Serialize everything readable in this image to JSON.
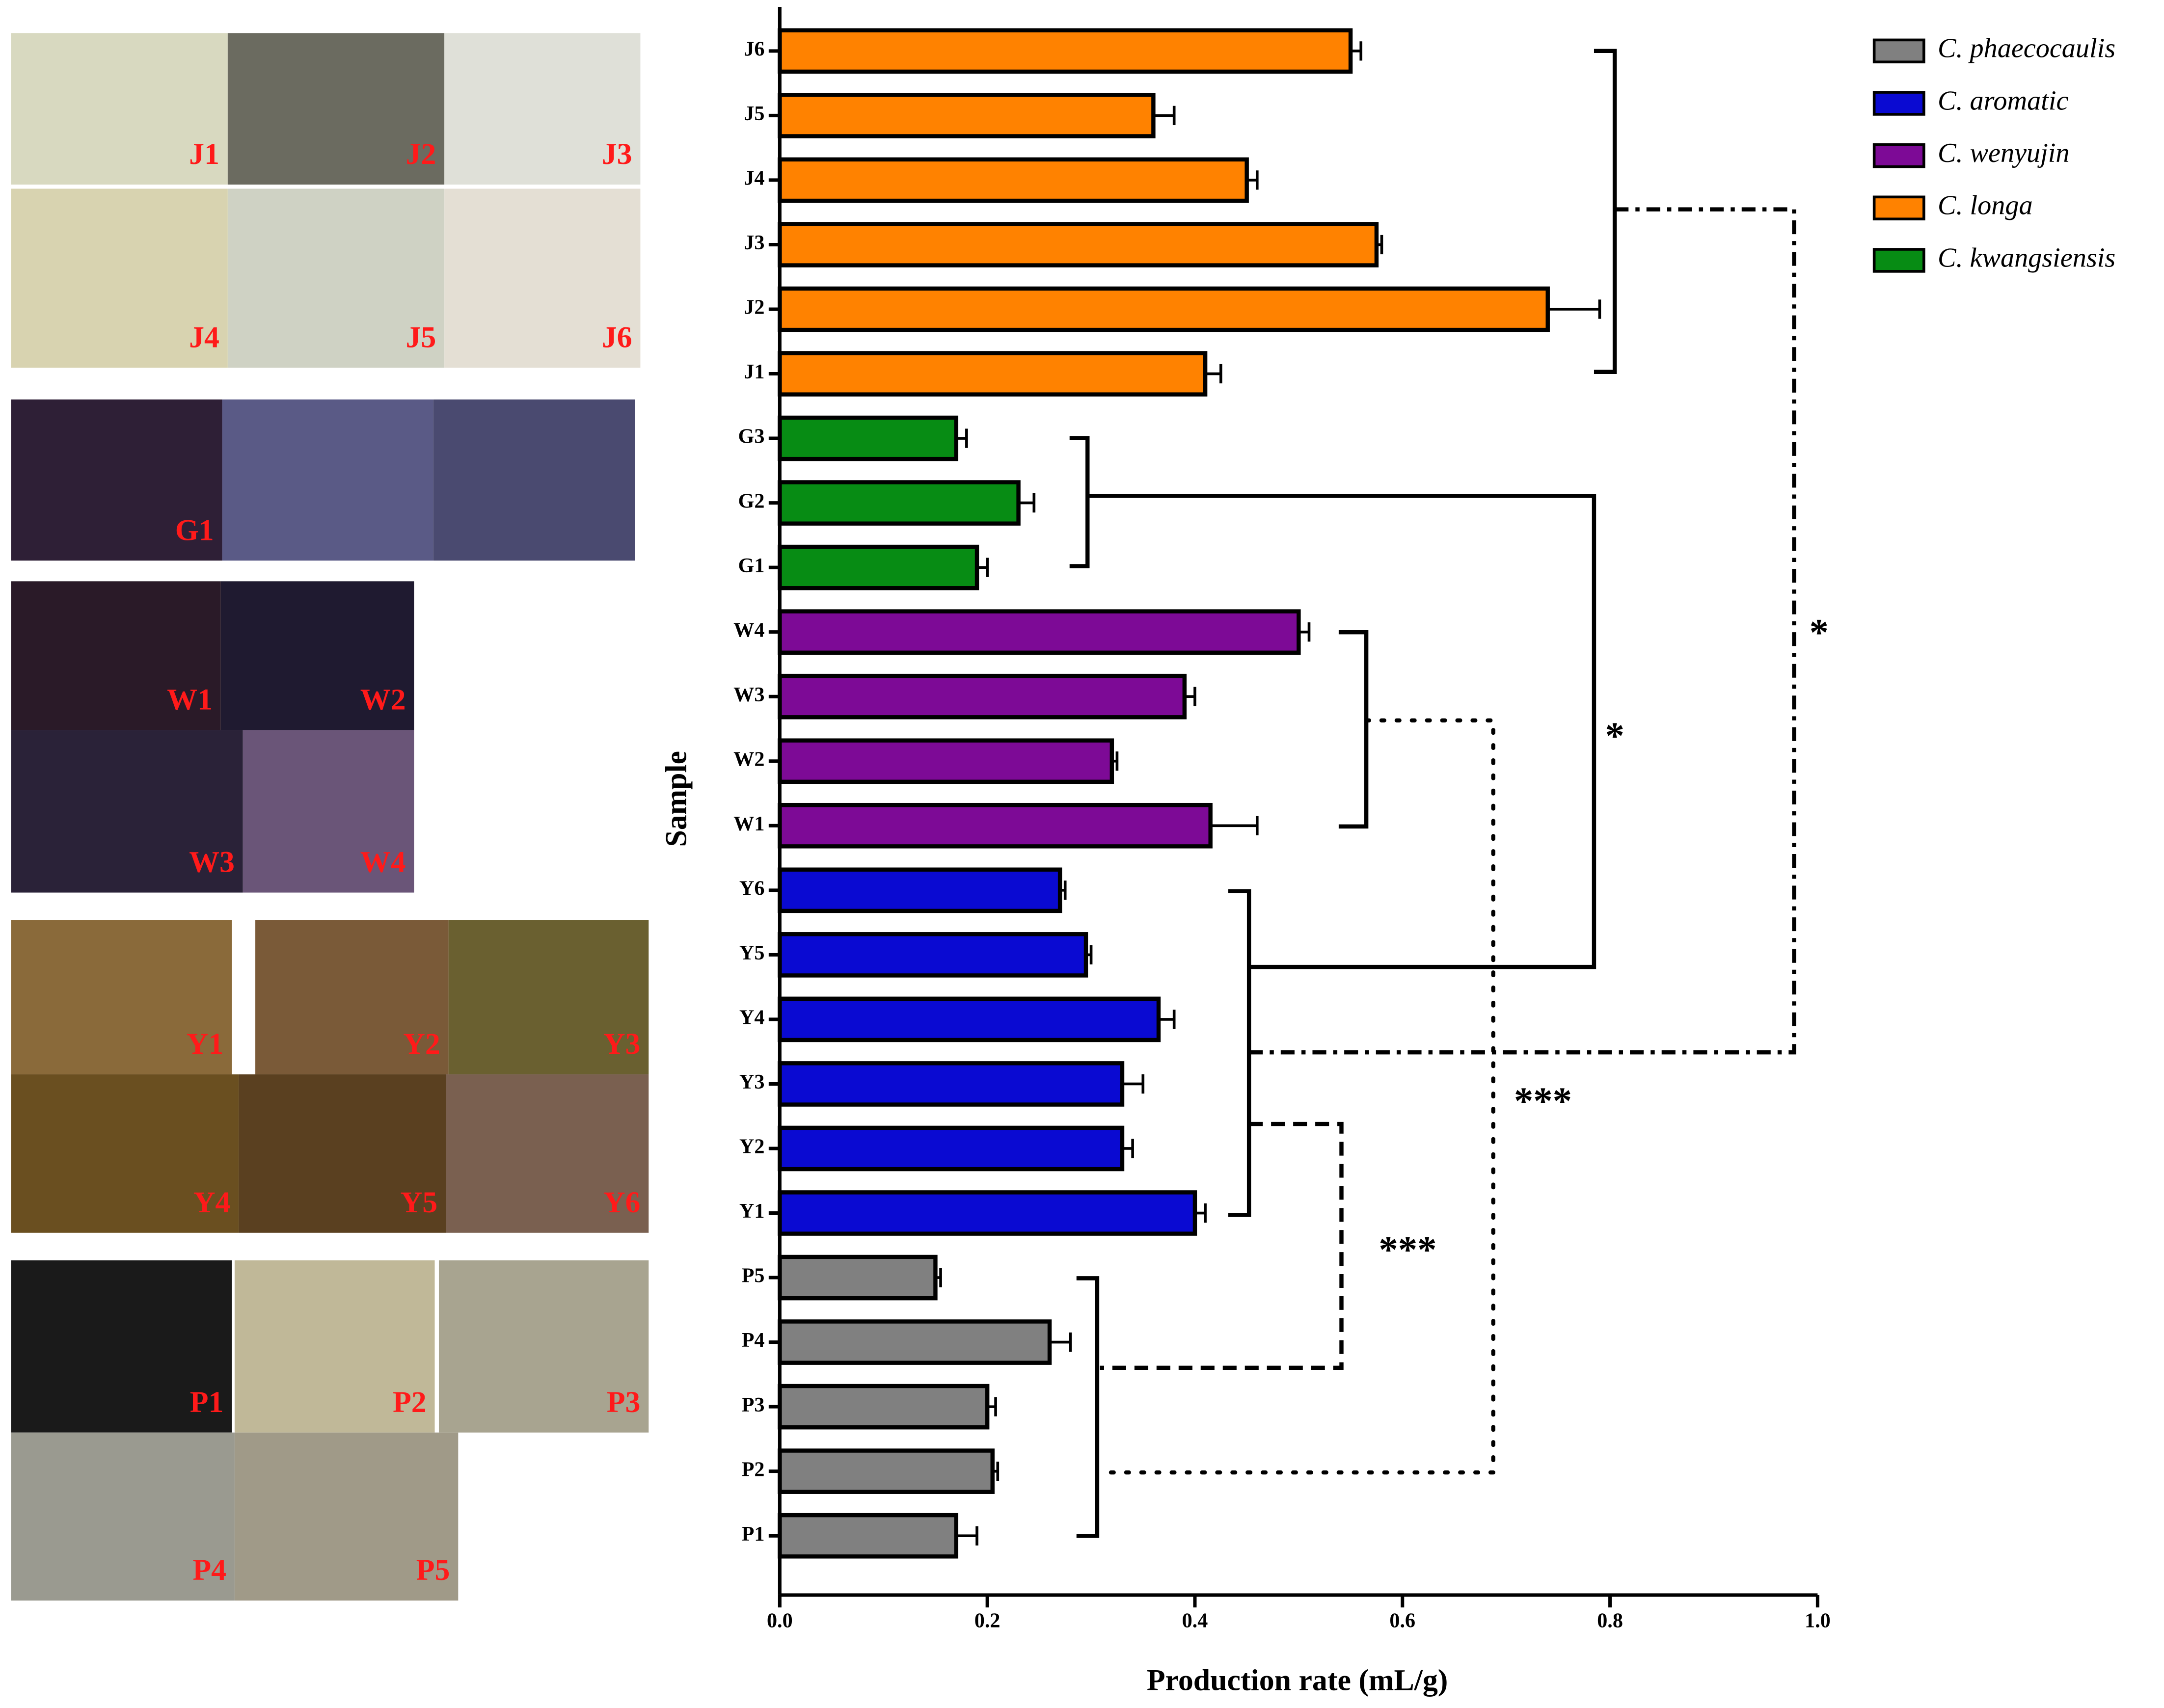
{
  "photo_labels": [
    "J1",
    "J2",
    "J3",
    "J4",
    "J5",
    "J6",
    "G1",
    "W1",
    "W2",
    "W3",
    "W4",
    "Y1",
    "Y2",
    "Y3",
    "Y4",
    "Y5",
    "Y6",
    "P1",
    "P2",
    "P3",
    "P4",
    "P5"
  ],
  "chart_data": {
    "type": "bar",
    "orientation": "horizontal",
    "xlabel": "Production rate (mL/g)",
    "ylabel": "Sample",
    "categories": [
      "P1",
      "P2",
      "P3",
      "P4",
      "P5",
      "Y1",
      "Y2",
      "Y3",
      "Y4",
      "Y5",
      "Y6",
      "W1",
      "W2",
      "W3",
      "W4",
      "G1",
      "G2",
      "G3",
      "J1",
      "J2",
      "J3",
      "J4",
      "J5",
      "J6"
    ],
    "series": [
      {
        "name": "C. phaecocaulis",
        "color": "#808080",
        "values": [
          0.17,
          0.205,
          0.2,
          0.26,
          0.15,
          null,
          null,
          null,
          null,
          null,
          null,
          null,
          null,
          null,
          null,
          null,
          null,
          null,
          null,
          null,
          null,
          null,
          null,
          null
        ],
        "errors": [
          0.02,
          0.005,
          0.008,
          0.02,
          0.005,
          null,
          null,
          null,
          null,
          null,
          null,
          null,
          null,
          null,
          null,
          null,
          null,
          null,
          null,
          null,
          null,
          null,
          null,
          null
        ]
      },
      {
        "name": "C. aromatic",
        "color": "#0a0ad2",
        "values": [
          null,
          null,
          null,
          null,
          null,
          0.4,
          0.33,
          0.33,
          0.365,
          0.295,
          0.27,
          null,
          null,
          null,
          null,
          null,
          null,
          null,
          null,
          null,
          null,
          null,
          null,
          null
        ],
        "errors": [
          null,
          null,
          null,
          null,
          null,
          0.01,
          0.01,
          0.02,
          0.015,
          0.005,
          0.005,
          null,
          null,
          null,
          null,
          null,
          null,
          null,
          null,
          null,
          null,
          null,
          null,
          null
        ]
      },
      {
        "name": "C. wenyujin",
        "color": "#7d0a96",
        "values": [
          null,
          null,
          null,
          null,
          null,
          null,
          null,
          null,
          null,
          null,
          null,
          0.415,
          0.32,
          0.39,
          0.5,
          null,
          null,
          null,
          null,
          null,
          null,
          null,
          null,
          null
        ],
        "errors": [
          null,
          null,
          null,
          null,
          null,
          null,
          null,
          null,
          null,
          null,
          null,
          0.045,
          0.005,
          0.01,
          0.01,
          null,
          null,
          null,
          null,
          null,
          null,
          null,
          null,
          null
        ]
      },
      {
        "name": "C. longa",
        "color": "#ff8200",
        "values": [
          null,
          null,
          null,
          null,
          null,
          null,
          null,
          null,
          null,
          null,
          null,
          null,
          null,
          null,
          null,
          null,
          null,
          null,
          0.41,
          0.74,
          0.575,
          0.45,
          0.36,
          0.55
        ],
        "errors": [
          null,
          null,
          null,
          null,
          null,
          null,
          null,
          null,
          null,
          null,
          null,
          null,
          null,
          null,
          null,
          null,
          null,
          null,
          0.015,
          0.05,
          0.005,
          0.01,
          0.02,
          0.01
        ]
      },
      {
        "name": "C. kwangsiensis",
        "color": "#078c14",
        "values": [
          null,
          null,
          null,
          null,
          null,
          null,
          null,
          null,
          null,
          null,
          null,
          null,
          null,
          null,
          null,
          0.19,
          0.23,
          0.17,
          null,
          null,
          null,
          null,
          null,
          null
        ],
        "errors": [
          null,
          null,
          null,
          null,
          null,
          null,
          null,
          null,
          null,
          null,
          null,
          null,
          null,
          null,
          null,
          0.01,
          0.015,
          0.01,
          null,
          null,
          null,
          null,
          null,
          null
        ]
      }
    ],
    "xlim": [
      0,
      1
    ],
    "xticks": [
      {
        "value": 0,
        "label": "0.0"
      },
      0.2,
      0.4,
      0.6,
      0.8,
      {
        "value": 1,
        "label": "1.0"
      }
    ],
    "annotations": [
      "*",
      "*",
      "***",
      "***"
    ],
    "legend": "top-right"
  }
}
